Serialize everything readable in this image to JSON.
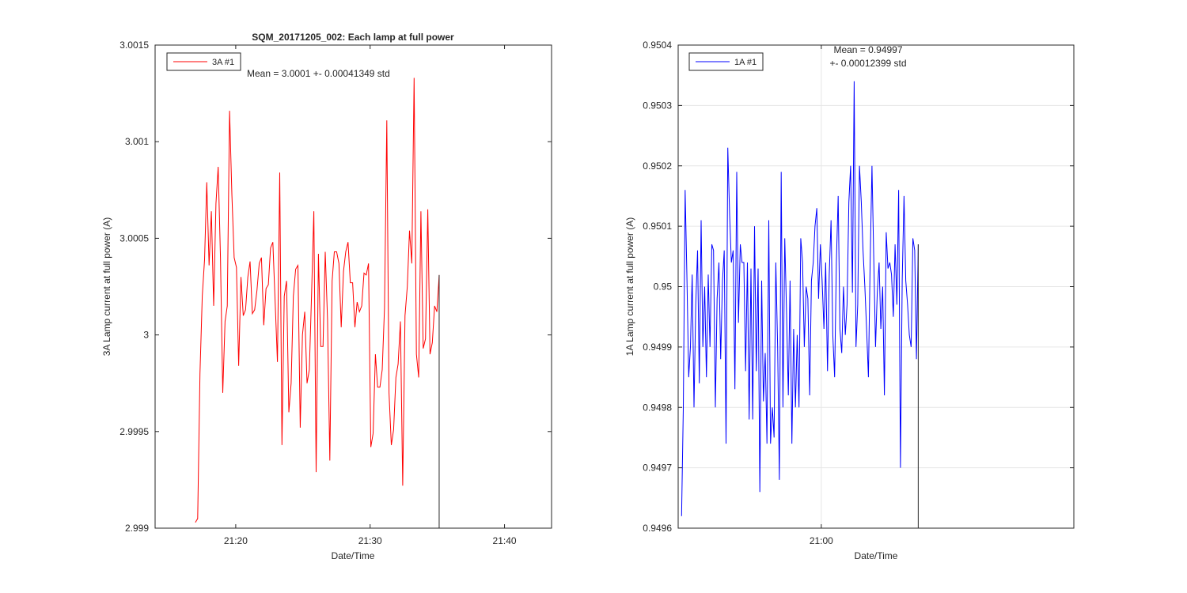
{
  "chart_data": [
    {
      "type": "line",
      "title": "SQM_20171205_002: Each lamp at full power",
      "xlabel": "Date/Time",
      "ylabel": "3A Lamp current at full power (A)",
      "xlim_minutes": [
        1274,
        1303.5
      ],
      "ylim": [
        2.999,
        3.0015
      ],
      "yticks": [
        2.999,
        2.9995,
        3.0,
        3.0005,
        3.001,
        3.0015
      ],
      "ytick_labels": [
        "2.999",
        "2.9995",
        "3",
        "3.0005",
        "3.001",
        "3.0015"
      ],
      "xticks_minutes": [
        1280,
        1290,
        1300
      ],
      "xtick_labels": [
        "21:20",
        "21:30",
        "21:40"
      ],
      "grid": false,
      "legend": {
        "label": "3A #1",
        "location": "top-left"
      },
      "annotation": "Mean = 3.0001 +- 0.00041349 std",
      "series": [
        {
          "name": "3A #1",
          "color": "#ff0000",
          "x_start_minutes": 1277.0,
          "x_step_minutes": 0.1695,
          "values": [
            2.99903,
            2.99905,
            2.9998,
            3.0002,
            3.00039,
            3.00079,
            3.00036,
            3.00064,
            3.00015,
            3.00068,
            3.00087,
            3.0004,
            2.9997,
            3.00007,
            3.00015,
            3.00116,
            3.00073,
            3.0004,
            3.00035,
            2.99984,
            3.0003,
            3.0001,
            3.00013,
            3.0003,
            3.00038,
            3.00011,
            3.00013,
            3.00023,
            3.00037,
            3.0004,
            3.00005,
            3.00024,
            3.00026,
            3.00045,
            3.00048,
            3.00017,
            2.99986,
            3.00084,
            2.99943,
            3.0002,
            3.00028,
            2.9996,
            2.99975,
            3.0002,
            3.00034,
            3.00036,
            2.99952,
            3.0,
            3.00012,
            2.99975,
            2.99982,
            3.00022,
            3.00064,
            2.99929,
            3.00042,
            2.99994,
            2.99994,
            3.00043,
            3.00008,
            2.99935,
            3.00028,
            3.00043,
            3.00043,
            3.00037,
            3.00004,
            3.00033,
            3.00043,
            3.00048,
            3.00027,
            3.00027,
            3.00004,
            3.00017,
            3.00012,
            3.00015,
            3.00032,
            3.00031,
            3.00037,
            2.99942,
            2.99949,
            2.9999,
            2.99973,
            2.99973,
            2.99982,
            3.00014,
            3.00111,
            2.9997,
            2.99943,
            2.99951,
            2.99978,
            2.99985,
            3.00007,
            2.99922,
            3.0001,
            3.00025,
            3.00054,
            3.00037,
            3.00133,
            2.9999,
            2.99978,
            3.00064,
            2.99993,
            2.99998,
            3.00065,
            2.9999,
            2.99996,
            3.00015,
            3.00012,
            3.00031
          ]
        }
      ]
    },
    {
      "type": "line",
      "title": "",
      "xlabel": "Date/Time",
      "ylabel": "1A Lamp current at full power (A)",
      "xlim_minutes": [
        1251.5,
        1275
      ],
      "ylim": [
        0.9496,
        0.9504
      ],
      "yticks": [
        0.9496,
        0.9497,
        0.9498,
        0.9499,
        0.95,
        0.9501,
        0.9502,
        0.9503,
        0.9504
      ],
      "ytick_labels": [
        "0.9496",
        "0.9497",
        "0.9498",
        "0.9499",
        "0.95",
        "0.9501",
        "0.9502",
        "0.9503",
        "0.9504"
      ],
      "xticks_minutes": [
        1260
      ],
      "xtick_labels": [
        "21:00"
      ],
      "grid": true,
      "legend": {
        "label": "1A #1",
        "location": "top-left"
      },
      "annotation": "Mean = 0.94997\n+- 0.00012399 std",
      "series": [
        {
          "name": "1A #1",
          "color": "#0000ff",
          "x_start_minutes": 1251.7,
          "x_step_minutes": 0.1057,
          "values": [
            0.94962,
            0.9498,
            0.95016,
            0.95002,
            0.94985,
            0.9499,
            0.95002,
            0.9498,
            0.94997,
            0.95006,
            0.94984,
            0.95011,
            0.9499,
            0.95,
            0.94985,
            0.95002,
            0.9499,
            0.95007,
            0.95006,
            0.9498,
            0.94998,
            0.95004,
            0.94988,
            0.95001,
            0.95006,
            0.94974,
            0.95023,
            0.95012,
            0.95004,
            0.95006,
            0.94983,
            0.95019,
            0.94994,
            0.95007,
            0.95004,
            0.95004,
            0.94986,
            0.95004,
            0.94978,
            0.95003,
            0.94978,
            0.9501,
            0.94986,
            0.95003,
            0.94966,
            0.95001,
            0.94981,
            0.94989,
            0.94974,
            0.95011,
            0.94974,
            0.9498,
            0.94975,
            0.95004,
            0.9499,
            0.94968,
            0.95019,
            0.9498,
            0.95008,
            0.94996,
            0.94982,
            0.95001,
            0.94974,
            0.94993,
            0.9498,
            0.94992,
            0.9498,
            0.95008,
            0.95004,
            0.9499,
            0.95,
            0.94998,
            0.94982,
            0.95001,
            0.95004,
            0.9501,
            0.95013,
            0.94998,
            0.95007,
            0.95001,
            0.94993,
            0.95004,
            0.94986,
            0.95002,
            0.95011,
            0.94992,
            0.94985,
            0.95004,
            0.95015,
            0.94993,
            0.94989,
            0.95,
            0.94992,
            0.94997,
            0.95014,
            0.9502,
            0.94999,
            0.95034,
            0.9499,
            0.94997,
            0.9502,
            0.95014,
            0.95006,
            0.95,
            0.94993,
            0.94985,
            0.95004,
            0.9502,
            0.95005,
            0.9499,
            0.94999,
            0.95004,
            0.94993,
            0.95,
            0.94982,
            0.95009,
            0.95003,
            0.95004,
            0.95002,
            0.94995,
            0.95007,
            0.94997,
            0.95016,
            0.9497,
            0.95001,
            0.95015,
            0.95001,
            0.94997,
            0.94992,
            0.9499,
            0.95008,
            0.95006,
            0.94988,
            0.95007
          ]
        }
      ]
    }
  ]
}
